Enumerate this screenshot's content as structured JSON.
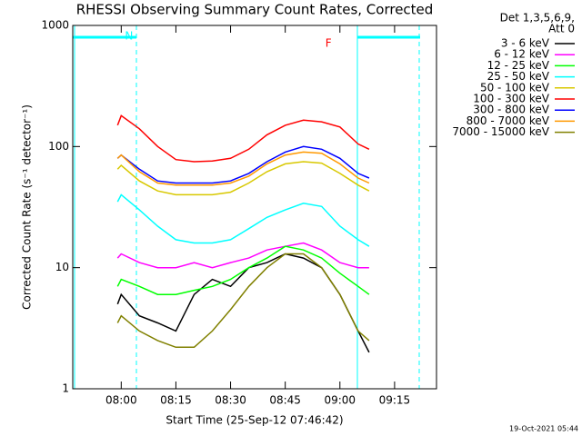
{
  "chart_data": {
    "type": "line",
    "title": "RHESSI Observing Summary Count Rates, Corrected",
    "ylabel": "Corrected Count Rate (s⁻¹ detector⁻¹)",
    "xlabel": "Start Time (25-Sep-12 07:46:42)",
    "legend_title": [
      "Det 1,3,5,6,9,",
      "Att 0"
    ],
    "timestamp": "19-Oct-2021 05:44",
    "annotations": [
      {
        "text": "N",
        "x": "08:01",
        "color": "#00ffff"
      },
      {
        "text": "F",
        "x": "08:56",
        "color": "#ff0000"
      }
    ],
    "log_y": true,
    "xlim": [
      "07:46:42",
      "09:26:30"
    ],
    "xticks": [
      "08:00",
      "08:15",
      "08:30",
      "08:45",
      "09:00",
      "09:15"
    ],
    "ylim": [
      1,
      1000
    ],
    "yticks": [
      1,
      10,
      100,
      1000
    ],
    "x": [
      "07:59",
      "08:00",
      "08:05",
      "08:10",
      "08:15",
      "08:20",
      "08:25",
      "08:30",
      "08:35",
      "08:40",
      "08:45",
      "08:50",
      "08:55",
      "09:00",
      "09:05",
      "09:08"
    ],
    "series": [
      {
        "name": "3 - 6 keV",
        "color": "#000000",
        "values": [
          5,
          6,
          4,
          3.5,
          3,
          6,
          8,
          7,
          10,
          11,
          13,
          12,
          10,
          6,
          3,
          2
        ]
      },
      {
        "name": "6 - 12 keV",
        "color": "#ff00ff",
        "values": [
          12,
          13,
          11,
          10,
          10,
          11,
          10,
          11,
          12,
          14,
          15,
          16,
          14,
          11,
          10,
          10
        ]
      },
      {
        "name": "12 - 25 keV",
        "color": "#00ff00",
        "values": [
          7,
          8,
          7,
          6,
          6,
          6.5,
          7,
          8,
          10,
          12,
          15,
          14,
          12,
          9,
          7,
          6
        ]
      },
      {
        "name": "25 - 50 keV",
        "color": "#00ffff",
        "values": [
          35,
          40,
          30,
          22,
          17,
          16,
          16,
          17,
          21,
          26,
          30,
          34,
          32,
          22,
          17,
          15
        ]
      },
      {
        "name": "50 - 100 keV",
        "color": "#d8c800",
        "values": [
          65,
          70,
          52,
          43,
          40,
          40,
          40,
          42,
          50,
          62,
          72,
          75,
          73,
          60,
          48,
          43
        ]
      },
      {
        "name": "100 - 300 keV",
        "color": "#ff0000",
        "values": [
          150,
          180,
          140,
          100,
          78,
          75,
          76,
          80,
          95,
          125,
          150,
          165,
          160,
          145,
          105,
          95
        ]
      },
      {
        "name": "300 - 800 keV",
        "color": "#0000ff",
        "values": [
          80,
          85,
          65,
          52,
          50,
          50,
          50,
          52,
          60,
          75,
          90,
          100,
          95,
          80,
          60,
          55
        ]
      },
      {
        "name": "800 - 7000 keV",
        "color": "#ff9900",
        "values": [
          80,
          85,
          62,
          50,
          48,
          48,
          48,
          50,
          57,
          72,
          85,
          90,
          88,
          72,
          55,
          50
        ]
      },
      {
        "name": "7000 - 15000 keV",
        "color": "#808000",
        "values": [
          3.5,
          4,
          3,
          2.5,
          2.2,
          2.2,
          3,
          4.5,
          7,
          10,
          13,
          13,
          10,
          6,
          3,
          2.5
        ]
      }
    ]
  }
}
